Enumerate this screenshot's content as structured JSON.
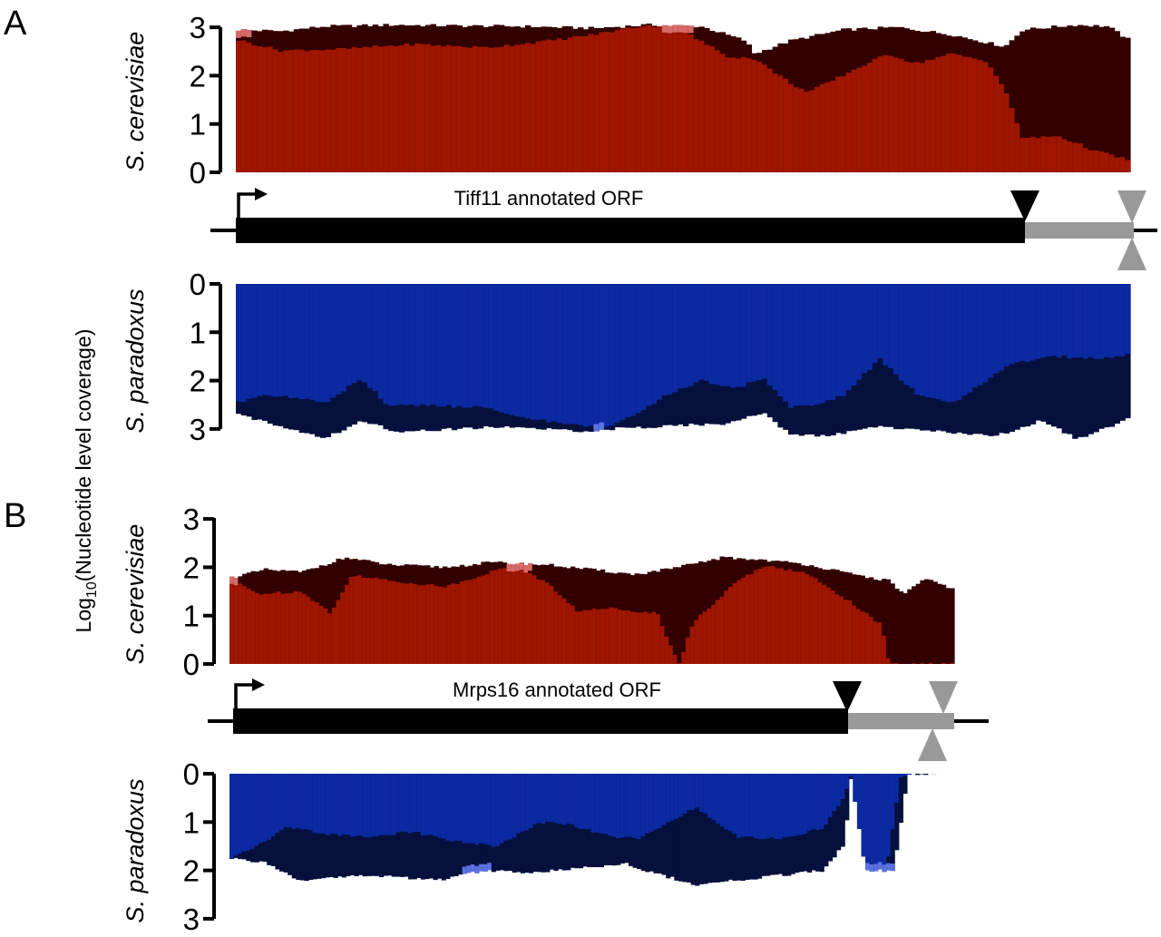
{
  "figure": {
    "ylabel_prefix": "Log",
    "ylabel_sub": "10",
    "ylabel_suffix": "(Nucleotide level coverage)",
    "colors": {
      "cer_total": "#330000",
      "cer_mapped": "#9e1500",
      "cer_high": "#d86a6a",
      "par_total": "#05103d",
      "par_mapped": "#0b2aa2",
      "par_high": "#5c72e0",
      "orf": "#000000",
      "utr": "#999999"
    }
  },
  "chart_data": [
    {
      "type": "area",
      "panel": "A",
      "gene": "Tiff11",
      "orf_label": "Tiff11 annotated ORF",
      "top_species": "S. cerevisiae",
      "bottom_species": "S. paradoxus",
      "yticks": [
        "0",
        "1",
        "2",
        "3"
      ],
      "ylim": [
        0,
        3
      ],
      "series": [
        {
          "name": "S. cerevisiae",
          "total_knots": [
            [
              0,
              2.95
            ],
            [
              0.05,
              2.92
            ],
            [
              0.1,
              3.02
            ],
            [
              0.18,
              3.05
            ],
            [
              0.25,
              3.03
            ],
            [
              0.32,
              3.02
            ],
            [
              0.4,
              2.98
            ],
            [
              0.46,
              3.05
            ],
            [
              0.52,
              3.02
            ],
            [
              0.57,
              2.72
            ],
            [
              0.58,
              2.45
            ],
            [
              0.62,
              2.72
            ],
            [
              0.68,
              2.95
            ],
            [
              0.74,
              3.0
            ],
            [
              0.8,
              2.85
            ],
            [
              0.86,
              2.6
            ],
            [
              0.88,
              2.95
            ],
            [
              0.94,
              3.05
            ],
            [
              0.975,
              3.02
            ],
            [
              1,
              2.72
            ]
          ],
          "mapped_knots": [
            [
              0,
              2.75
            ],
            [
              0.05,
              2.52
            ],
            [
              0.12,
              2.55
            ],
            [
              0.2,
              2.65
            ],
            [
              0.28,
              2.58
            ],
            [
              0.35,
              2.72
            ],
            [
              0.4,
              2.85
            ],
            [
              0.46,
              3.05
            ],
            [
              0.5,
              2.92
            ],
            [
              0.55,
              2.4
            ],
            [
              0.58,
              2.35
            ],
            [
              0.62,
              1.85
            ],
            [
              0.64,
              1.65
            ],
            [
              0.7,
              2.2
            ],
            [
              0.73,
              2.45
            ],
            [
              0.76,
              2.25
            ],
            [
              0.8,
              2.45
            ],
            [
              0.84,
              2.3
            ],
            [
              0.86,
              1.7
            ],
            [
              0.88,
              0.7
            ],
            [
              0.92,
              0.75
            ],
            [
              0.96,
              0.45
            ],
            [
              1,
              0.25
            ]
          ],
          "highlights": [
            [
              0,
              0.015
            ],
            [
              0.475,
              0.51
            ]
          ]
        },
        {
          "name": "S. paradoxus",
          "total_knots": [
            [
              0,
              2.7
            ],
            [
              0.06,
              2.98
            ],
            [
              0.1,
              3.2
            ],
            [
              0.14,
              2.82
            ],
            [
              0.18,
              3.05
            ],
            [
              0.25,
              3.0
            ],
            [
              0.3,
              2.95
            ],
            [
              0.38,
              3.05
            ],
            [
              0.44,
              2.98
            ],
            [
              0.5,
              2.92
            ],
            [
              0.55,
              2.9
            ],
            [
              0.59,
              2.65
            ],
            [
              0.62,
              3.12
            ],
            [
              0.66,
              3.15
            ],
            [
              0.72,
              2.95
            ],
            [
              0.78,
              3.05
            ],
            [
              0.85,
              3.15
            ],
            [
              0.9,
              2.82
            ],
            [
              0.94,
              3.2
            ],
            [
              0.98,
              2.95
            ],
            [
              1,
              2.75
            ]
          ],
          "mapped_knots": [
            [
              0,
              2.45
            ],
            [
              0.04,
              2.3
            ],
            [
              0.1,
              2.45
            ],
            [
              0.14,
              1.95
            ],
            [
              0.17,
              2.5
            ],
            [
              0.22,
              2.52
            ],
            [
              0.28,
              2.55
            ],
            [
              0.33,
              2.8
            ],
            [
              0.38,
              2.9
            ],
            [
              0.41,
              3.0
            ],
            [
              0.45,
              2.7
            ],
            [
              0.48,
              2.32
            ],
            [
              0.52,
              2.0
            ],
            [
              0.56,
              2.15
            ],
            [
              0.59,
              1.95
            ],
            [
              0.62,
              2.55
            ],
            [
              0.65,
              2.48
            ],
            [
              0.68,
              2.3
            ],
            [
              0.72,
              1.55
            ],
            [
              0.76,
              2.25
            ],
            [
              0.8,
              2.48
            ],
            [
              0.84,
              2.0
            ],
            [
              0.87,
              1.62
            ],
            [
              0.92,
              1.5
            ],
            [
              0.96,
              1.55
            ],
            [
              1,
              1.45
            ]
          ],
          "highlights": [
            [
              0.4,
              0.41
            ]
          ]
        }
      ]
    },
    {
      "type": "area",
      "panel": "B",
      "gene": "Mrps16",
      "orf_label": "Mrps16 annotated ORF",
      "top_species": "S. cerevisiae",
      "bottom_species": "S. paradoxus",
      "yticks": [
        "0",
        "1",
        "2",
        "3"
      ],
      "ylim": [
        0,
        3
      ],
      "series": [
        {
          "name": "S. cerevisiae",
          "total_knots": [
            [
              0,
              1.78
            ],
            [
              0.05,
              1.95
            ],
            [
              0.1,
              1.9
            ],
            [
              0.16,
              2.2
            ],
            [
              0.22,
              2.05
            ],
            [
              0.3,
              2.0
            ],
            [
              0.36,
              2.1
            ],
            [
              0.44,
              2.05
            ],
            [
              0.5,
              1.95
            ],
            [
              0.56,
              1.85
            ],
            [
              0.62,
              2.0
            ],
            [
              0.68,
              2.2
            ],
            [
              0.74,
              2.15
            ],
            [
              0.8,
              2.05
            ],
            [
              0.86,
              1.85
            ],
            [
              0.91,
              1.72
            ],
            [
              0.93,
              1.45
            ],
            [
              0.96,
              1.75
            ],
            [
              1,
              1.55
            ]
          ],
          "mapped_knots": [
            [
              0,
              1.75
            ],
            [
              0.04,
              1.45
            ],
            [
              0.1,
              1.5
            ],
            [
              0.14,
              1.05
            ],
            [
              0.17,
              1.85
            ],
            [
              0.22,
              1.72
            ],
            [
              0.3,
              1.6
            ],
            [
              0.37,
              1.95
            ],
            [
              0.4,
              2.0
            ],
            [
              0.44,
              1.65
            ],
            [
              0.48,
              1.1
            ],
            [
              0.53,
              1.15
            ],
            [
              0.59,
              1.05
            ],
            [
              0.62,
              0.0
            ],
            [
              0.64,
              0.85
            ],
            [
              0.7,
              1.7
            ],
            [
              0.74,
              2.05
            ],
            [
              0.8,
              1.85
            ],
            [
              0.86,
              1.25
            ],
            [
              0.9,
              0.8
            ],
            [
              0.91,
              0.0
            ],
            [
              1,
              0.0
            ]
          ],
          "highlights": [
            [
              0,
              0.01
            ],
            [
              0.385,
              0.42
            ]
          ]
        },
        {
          "name": "S. paradoxus",
          "total_knots": [
            [
              0,
              1.75
            ],
            [
              0.05,
              1.85
            ],
            [
              0.1,
              2.2
            ],
            [
              0.18,
              2.1
            ],
            [
              0.25,
              2.15
            ],
            [
              0.3,
              2.2
            ],
            [
              0.36,
              2.0
            ],
            [
              0.42,
              2.05
            ],
            [
              0.5,
              1.95
            ],
            [
              0.56,
              1.85
            ],
            [
              0.6,
              2.05
            ],
            [
              0.66,
              2.3
            ],
            [
              0.72,
              2.2
            ],
            [
              0.78,
              2.1
            ],
            [
              0.84,
              2.0
            ],
            [
              0.87,
              1.45
            ],
            [
              0.88,
              0.05
            ],
            [
              0.9,
              2.0
            ],
            [
              0.94,
              2.0
            ],
            [
              0.96,
              0.0
            ],
            [
              1,
              0.0
            ]
          ],
          "mapped_knots": [
            [
              0,
              1.75
            ],
            [
              0.04,
              1.5
            ],
            [
              0.08,
              1.1
            ],
            [
              0.14,
              1.25
            ],
            [
              0.2,
              1.3
            ],
            [
              0.26,
              1.2
            ],
            [
              0.32,
              1.4
            ],
            [
              0.38,
              1.5
            ],
            [
              0.44,
              1.0
            ],
            [
              0.48,
              1.05
            ],
            [
              0.54,
              1.3
            ],
            [
              0.58,
              1.35
            ],
            [
              0.62,
              1.0
            ],
            [
              0.66,
              0.7
            ],
            [
              0.72,
              1.3
            ],
            [
              0.78,
              1.35
            ],
            [
              0.84,
              1.12
            ],
            [
              0.87,
              0.5
            ],
            [
              0.88,
              0.05
            ],
            [
              0.9,
              2.0
            ],
            [
              0.93,
              1.95
            ],
            [
              0.95,
              0.05
            ],
            [
              1,
              0.0
            ]
          ],
          "highlights": [
            [
              0.33,
              0.37
            ],
            [
              0.9,
              0.94
            ]
          ]
        }
      ]
    }
  ]
}
